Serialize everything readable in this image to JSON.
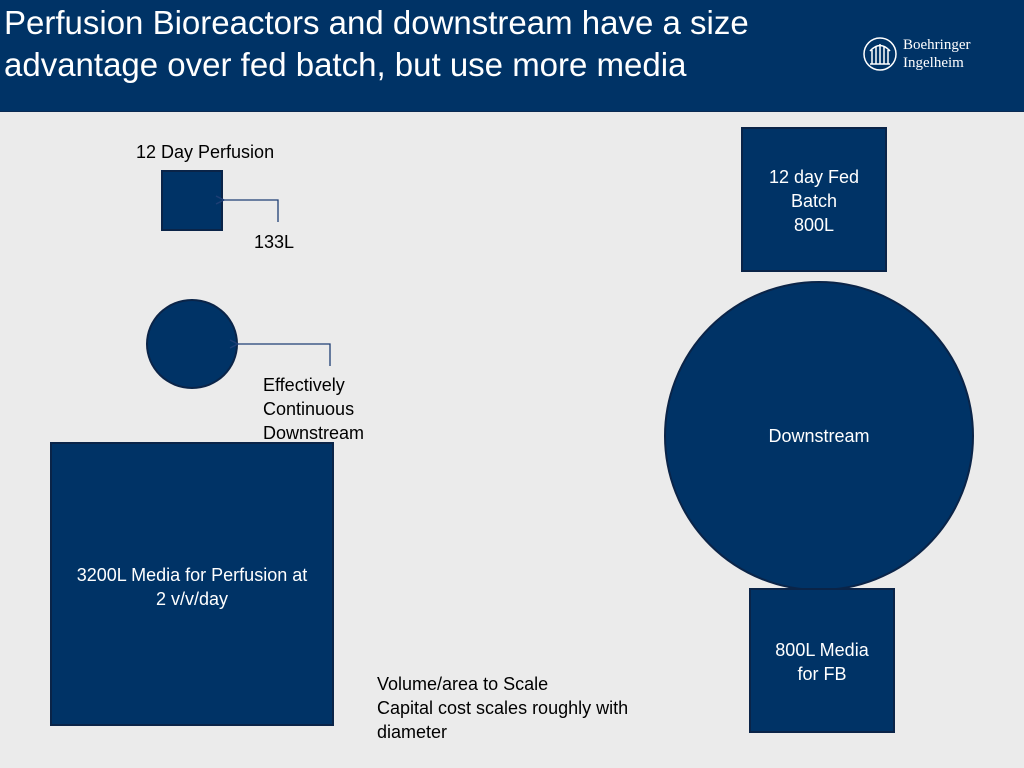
{
  "header": {
    "title_lines": [
      "Perfusion Bioreactors and downstream have a size",
      "advantage over fed batch, but use more media"
    ],
    "logo_lines": [
      "Boehringer",
      "Ingelheim"
    ],
    "logo_icon": "boehringer-ingelheim-logo"
  },
  "perfusion": {
    "heading": "12 Day Perfusion",
    "bioreactor_volume": "133L",
    "downstream_lines": [
      "Effectively",
      "Continuous",
      "Downstream"
    ],
    "media_lines": [
      "3200L Media for Perfusion at",
      "2 v/v/day"
    ]
  },
  "fed_batch": {
    "bioreactor_lines": [
      "12 day Fed",
      "Batch",
      "800L"
    ],
    "downstream_label": "Downstream",
    "media_lines": [
      "800L Media",
      "for FB"
    ]
  },
  "note_lines": [
    "Volume/area to Scale",
    "Capital cost scales roughly with",
    "diameter"
  ],
  "colors": {
    "header_bg": "#003366",
    "shape_fill": "#003366",
    "background": "#ebebeb"
  }
}
